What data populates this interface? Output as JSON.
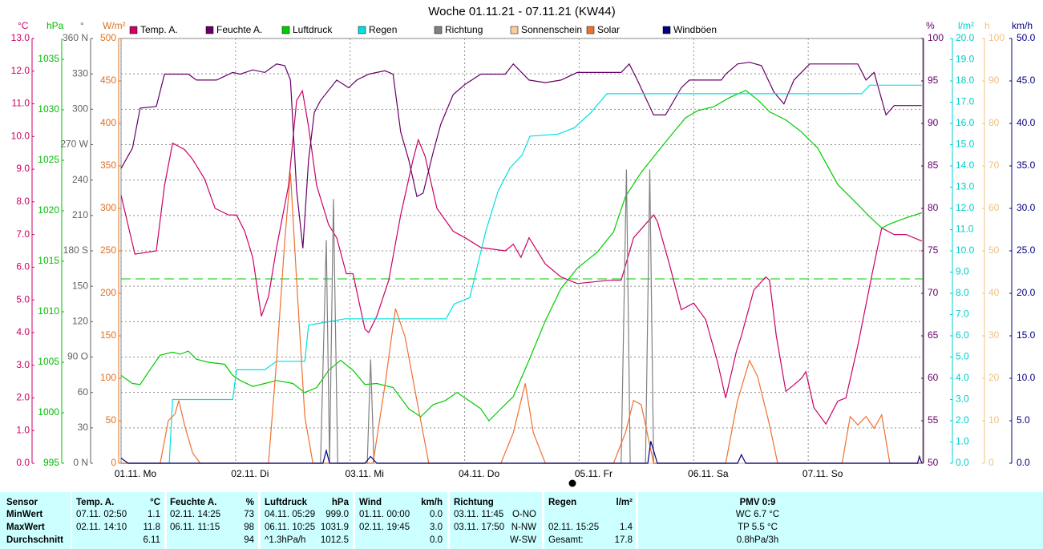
{
  "chart_data": {
    "type": "line",
    "title": "Woche 01.11.21 - 07.11.21 (KW44)",
    "xlim": [
      0,
      168
    ],
    "xticks": [
      {
        "value": 0,
        "label": "01.11. Mo"
      },
      {
        "value": 24,
        "label": "02.11. Di"
      },
      {
        "value": 48,
        "label": "03.11. Mi"
      },
      {
        "value": 72,
        "label": "04.11. Do"
      },
      {
        "value": 96,
        "label": "05.11. Fr"
      },
      {
        "value": 120,
        "label": "06.11. Sa"
      },
      {
        "value": 144,
        "label": "07.11. So"
      }
    ],
    "grid": true,
    "grid_axis": "dir",
    "reference_line": {
      "value": 1013.25,
      "axis": "hpa",
      "color": "#00cc00"
    },
    "axes": [
      {
        "id": "temp",
        "unit": "°C",
        "color": "#cc0066",
        "lim": [
          0,
          13
        ],
        "ticks": [
          {
            "value": 0,
            "label": "0.0"
          },
          {
            "value": 1,
            "label": "1.0"
          },
          {
            "value": 2,
            "label": "2.0"
          },
          {
            "value": 3,
            "label": "3.0"
          },
          {
            "value": 4,
            "label": "4.0"
          },
          {
            "value": 5,
            "label": "5.0"
          },
          {
            "value": 6,
            "label": "6.0"
          },
          {
            "value": 7,
            "label": "7.0"
          },
          {
            "value": 8,
            "label": "8.0"
          },
          {
            "value": 9,
            "label": "9.0"
          },
          {
            "value": 10,
            "label": "10.0"
          },
          {
            "value": 11,
            "label": "11.0"
          },
          {
            "value": 12,
            "label": "12.0"
          },
          {
            "value": 13,
            "label": "13.0"
          }
        ]
      },
      {
        "id": "hpa",
        "unit": "hPa",
        "color": "#00bb00",
        "lim": [
          995,
          1037.06
        ],
        "ticks": [
          995,
          1000,
          1005,
          1010,
          1015,
          1020,
          1025,
          1030,
          1035
        ]
      },
      {
        "id": "dir",
        "unit": "°",
        "color": "#606060",
        "lim": [
          0,
          360
        ],
        "ticks": [
          {
            "value": 0,
            "label": "0 N"
          },
          30,
          60,
          {
            "value": 90,
            "label": "90 O"
          },
          120,
          150,
          {
            "value": 180,
            "label": "180 S"
          },
          210,
          240,
          {
            "value": 270,
            "label": "270 W"
          },
          300,
          330,
          {
            "value": 360,
            "label": "360 N"
          }
        ]
      },
      {
        "id": "solar",
        "unit": "W/m²",
        "color": "#e07020",
        "lim": [
          0,
          500
        ],
        "ticks": [
          0,
          50,
          100,
          150,
          200,
          250,
          300,
          350,
          400,
          450,
          500
        ]
      },
      {
        "id": "hum",
        "unit": "%",
        "color": "#660066",
        "lim": [
          50,
          100
        ],
        "ticks": [
          50,
          55,
          60,
          65,
          70,
          75,
          80,
          85,
          90,
          95,
          100
        ]
      },
      {
        "id": "rain",
        "unit": "l/m²",
        "color": "#00cccc",
        "lim": [
          0,
          20
        ],
        "ticks": [
          {
            "value": 0,
            "label": "0.0"
          },
          {
            "value": 1,
            "label": "1.0"
          },
          {
            "value": 2,
            "label": "2.0"
          },
          {
            "value": 3,
            "label": "3.0"
          },
          {
            "value": 4,
            "label": "4.0"
          },
          {
            "value": 5,
            "label": "5.0"
          },
          {
            "value": 6,
            "label": "6.0"
          },
          {
            "value": 7,
            "label": "7.0"
          },
          {
            "value": 8,
            "label": "8.0"
          },
          {
            "value": 9,
            "label": "9.0"
          },
          {
            "value": 10,
            "label": "10.0"
          },
          {
            "value": 11,
            "label": "11.0"
          },
          {
            "value": 12,
            "label": "12.0"
          },
          {
            "value": 13,
            "label": "13.0"
          },
          {
            "value": 14,
            "label": "14.0"
          },
          {
            "value": 15,
            "label": "15.0"
          },
          {
            "value": 16,
            "label": "16.0"
          },
          {
            "value": 17,
            "label": "17.0"
          },
          {
            "value": 18,
            "label": "18.0"
          },
          {
            "value": 19,
            "label": "19.0"
          },
          {
            "value": 20,
            "label": "20.0"
          }
        ]
      },
      {
        "id": "sun",
        "unit": "h",
        "color": "#f0c080",
        "lim": [
          0,
          100
        ],
        "ticks": [
          0,
          10,
          20,
          30,
          40,
          50,
          60,
          70,
          80,
          90,
          100
        ]
      },
      {
        "id": "wind",
        "unit": "km/h",
        "color": "#000080",
        "lim": [
          0,
          50
        ],
        "ticks": [
          {
            "value": 0,
            "label": "0.0"
          },
          {
            "value": 5,
            "label": "5.0"
          },
          {
            "value": 10,
            "label": "10.0"
          },
          {
            "value": 15,
            "label": "15.0"
          },
          {
            "value": 20,
            "label": "20.0"
          },
          {
            "value": 25,
            "label": "25.0"
          },
          {
            "value": 30,
            "label": "30.0"
          },
          {
            "value": 35,
            "label": "35.0"
          },
          {
            "value": 40,
            "label": "40.0"
          },
          {
            "value": 45,
            "label": "45.0"
          },
          {
            "value": 50,
            "label": "50.0"
          }
        ]
      }
    ],
    "series": [
      {
        "name": "Temp. A.",
        "color": "#cc0066",
        "axis": "temp",
        "x": [
          0,
          2.9,
          7.4,
          9.1,
          10.8,
          13.3,
          15,
          17.5,
          19.7,
          22.5,
          24.2,
          25.9,
          27.6,
          29.4,
          30.9,
          32.6,
          35.1,
          36.8,
          38,
          39.3,
          41,
          43.5,
          45.2,
          47.2,
          48.6,
          51.1,
          51.9,
          53.6,
          56.1,
          58.6,
          61.2,
          62.3,
          63.7,
          66.2,
          69.6,
          72.1,
          75.4,
          80.5,
          82.2,
          83.8,
          85.5,
          88.9,
          92.2,
          95.6,
          102.3,
          104.8,
          107.4,
          111.6,
          112.4,
          114.9,
          117.4,
          120,
          122.5,
          125,
          126.7,
          128.9,
          130,
          132.6,
          135.1,
          135.9,
          137.3,
          139.3,
          141,
          142.6,
          143.5,
          145.2,
          147.7,
          150.2,
          151.9,
          154.4,
          157.4,
          159.4,
          162,
          164.5,
          167.8
        ],
        "values": [
          8.2,
          6.4,
          6.5,
          8.5,
          9.8,
          9.6,
          9.3,
          8.7,
          7.8,
          7.6,
          7.6,
          7.1,
          6.3,
          4.5,
          5.1,
          6.6,
          8.5,
          11.1,
          11.4,
          10.3,
          8.5,
          7.3,
          6.9,
          5.8,
          5.8,
          4.1,
          4.0,
          4.5,
          5.6,
          7.6,
          9.3,
          9.9,
          9.4,
          7.8,
          7.1,
          6.9,
          6.6,
          6.5,
          6.7,
          6.3,
          6.9,
          6.1,
          5.7,
          5.5,
          5.6,
          5.6,
          6.9,
          7.6,
          7.4,
          6.1,
          4.7,
          4.9,
          4.4,
          3.1,
          2.0,
          3.4,
          3.9,
          5.3,
          5.7,
          5.6,
          3.9,
          2.2,
          2.4,
          2.6,
          2.8,
          1.7,
          1.2,
          1.9,
          2.0,
          3.6,
          5.8,
          7.2,
          7.0,
          7.0,
          6.8
        ]
      },
      {
        "name": "Feuchte A.",
        "color": "#660066",
        "axis": "hum",
        "x": [
          0,
          2.4,
          4,
          7.4,
          9.1,
          14.1,
          15.8,
          20,
          23.4,
          25,
          27.6,
          30.1,
          32.6,
          34.3,
          35.5,
          36.8,
          38.1,
          39.3,
          40.5,
          41.8,
          45.2,
          47.7,
          49.4,
          51.9,
          55.3,
          57,
          58.6,
          60.3,
          62,
          63.3,
          65.4,
          67,
          69.6,
          72.1,
          75.4,
          80.5,
          82.2,
          85.5,
          88.9,
          92.2,
          95.6,
          104.8,
          106.5,
          108.2,
          111.6,
          114.1,
          117.4,
          119.1,
          125.8,
          126.7,
          129.2,
          131.7,
          134.2,
          136.8,
          138.9,
          141,
          144.3,
          154.4,
          156.1,
          157.8,
          160.3,
          162,
          167.8
        ],
        "values": [
          84.7,
          87.1,
          91.8,
          92.0,
          95.8,
          95.8,
          95.1,
          95.1,
          96.0,
          95.8,
          96.3,
          96.0,
          97.0,
          96.8,
          95.1,
          82.1,
          75.3,
          85.7,
          91.3,
          92.7,
          95.1,
          94.2,
          95.1,
          95.8,
          96.2,
          95.8,
          89.0,
          85.7,
          81.4,
          81.8,
          86.6,
          89.9,
          93.4,
          94.6,
          95.8,
          95.8,
          97.0,
          95.1,
          94.8,
          95.1,
          96.0,
          96.0,
          97.0,
          95.1,
          91.0,
          91.0,
          94.2,
          95.1,
          95.1,
          95.8,
          97.0,
          97.2,
          96.8,
          93.7,
          92.3,
          95.1,
          97.0,
          97.0,
          95.1,
          96.0,
          91.0,
          92.1,
          92.1
        ]
      },
      {
        "name": "Luftdruck",
        "color": "#00cc00",
        "axis": "hpa",
        "x": [
          0,
          2.4,
          4,
          5.7,
          8.2,
          10.8,
          12.4,
          14.1,
          15.8,
          18.3,
          21.7,
          23.4,
          25,
          27.6,
          30.1,
          32.6,
          36,
          38.5,
          41,
          43.5,
          46,
          48.6,
          51.1,
          53.6,
          57,
          60.3,
          62.8,
          65.4,
          67.9,
          70.4,
          72.9,
          75.4,
          77.1,
          79.6,
          82.2,
          85.5,
          88.9,
          92.2,
          95.6,
          99.8,
          103.2,
          105.7,
          109,
          112.4,
          115.8,
          118.3,
          120.8,
          124.2,
          127.5,
          130.9,
          133.4,
          135.9,
          139.3,
          142.6,
          146,
          150.2,
          153.6,
          156.9,
          159.4,
          161.1,
          164.5,
          167.8
        ],
        "values": [
          1003.7,
          1002.9,
          1002.8,
          1004.0,
          1005.7,
          1006.0,
          1005.8,
          1006.1,
          1005.3,
          1005.0,
          1004.8,
          1003.7,
          1003.2,
          1002.6,
          1002.9,
          1003.2,
          1002.9,
          1002.0,
          1002.5,
          1004.2,
          1005.2,
          1004.2,
          1002.8,
          1002.9,
          1002.5,
          1000.4,
          999.6,
          1000.8,
          1001.2,
          1002.0,
          1001.2,
          1000.4,
          999.2,
          1000.4,
          1001.6,
          1005.2,
          1009.1,
          1012.3,
          1014.3,
          1015.9,
          1017.9,
          1021.4,
          1023.8,
          1025.8,
          1027.8,
          1029.2,
          1029.9,
          1030.3,
          1031.2,
          1031.9,
          1031.0,
          1029.8,
          1029.0,
          1027.8,
          1026.2,
          1022.6,
          1021.0,
          1019.4,
          1018.3,
          1018.7,
          1019.3,
          1019.8
        ]
      },
      {
        "name": "Regen",
        "color": "#00e0e0",
        "axis": "rain",
        "x": [
          0,
          10.1,
          10.8,
          23.4,
          24.2,
          30.1,
          32.6,
          38.5,
          39.3,
          41.8,
          46.9,
          68.1,
          69.8,
          73.1,
          74.8,
          76.4,
          79,
          81.5,
          84,
          85.7,
          91.6,
          95,
          98.4,
          101.8,
          155.2,
          156.9,
          167.8
        ],
        "values": [
          0,
          0,
          3.0,
          3.0,
          4.4,
          4.4,
          4.8,
          4.8,
          6.5,
          6.6,
          6.8,
          6.8,
          7.5,
          7.8,
          9.4,
          10.9,
          12.8,
          13.9,
          14.5,
          15.4,
          15.5,
          15.8,
          16.5,
          17.4,
          17.4,
          17.8,
          17.8
        ]
      },
      {
        "name": "Richtung",
        "color": "#808080",
        "axis": "dir",
        "x": [
          0,
          41.8,
          43,
          43.7,
          44.5,
          45.4,
          51.6,
          52.3,
          53,
          104.8,
          105.9,
          106.7,
          109.9,
          110.8,
          111.6,
          167.8
        ],
        "values": [
          0,
          0,
          189,
          0,
          224,
          0,
          0,
          88,
          0,
          0,
          249,
          0,
          0,
          249,
          0,
          0
        ]
      },
      {
        "name": "Sonnenschein",
        "color": "#ffcc99",
        "axis": "sun",
        "x": [
          0,
          167.8
        ],
        "values": [
          0,
          0
        ]
      },
      {
        "name": "Solar",
        "color": "#f07030",
        "axis": "solar",
        "x": [
          0,
          8.2,
          9.9,
          11.3,
          12.1,
          13.3,
          15,
          16.6,
          30.9,
          32.6,
          34.3,
          35.5,
          36.8,
          38.5,
          40.2,
          52.8,
          55.3,
          57.5,
          59.5,
          62,
          64.5,
          79.6,
          82.2,
          84.7,
          86.4,
          88.9,
          103.2,
          105.7,
          107.4,
          109,
          111.6,
          126.7,
          129.2,
          131.7,
          133.4,
          135.9,
          137.6,
          151.1,
          152.8,
          154.4,
          156.1,
          157.8,
          159.4,
          161.1,
          167.8
        ],
        "values": [
          0,
          0,
          50,
          58,
          74,
          45,
          12,
          0,
          0,
          121,
          262,
          342,
          215,
          55,
          0,
          0,
          92,
          182,
          149,
          74,
          0,
          0,
          36,
          94,
          36,
          0,
          0,
          36,
          74,
          69,
          0,
          0,
          74,
          121,
          102,
          45,
          0,
          0,
          55,
          45,
          55,
          41,
          57,
          0,
          0
        ]
      },
      {
        "name": "Windböen",
        "color": "#000080",
        "axis": "wind",
        "x": [
          0,
          1.5,
          42.3,
          43,
          43.7,
          51.1,
          52.3,
          53.6,
          110.4,
          111,
          112.4,
          129.2,
          130,
          130.9,
          166.9,
          167.3,
          167.8
        ],
        "values": [
          0.6,
          0,
          0,
          1.5,
          0,
          0,
          0.8,
          0,
          0,
          2.6,
          0,
          0,
          1.0,
          0,
          0,
          0.8,
          0
        ]
      }
    ]
  },
  "table": {
    "rows": [
      [
        "Sensor",
        "Temp. A.",
        "°C",
        "Feuchte A.",
        "%",
        "Luftdruck",
        "hPa",
        "Wind",
        "km/h",
        "Richtung",
        null,
        "Regen",
        "l/m²",
        "PMV 0:9"
      ],
      [
        "MinWert",
        "07.11. 02:50",
        "1.1",
        "02.11. 14:25",
        "73",
        "04.11. 05:29",
        "999.0",
        "01.11. 00:00",
        "0.0",
        "03.11. 11:45",
        "O-NO",
        null,
        null,
        "WC 6.7 °C"
      ],
      [
        "MaxWert",
        "02.11. 14:10",
        "11.8",
        "06.11. 11:15",
        "98",
        "06.11. 10:25",
        "1031.9",
        "02.11. 19:45",
        "3.0",
        "03.11. 17:50",
        "N-NW",
        "02.11. 15:25",
        "1.4",
        "TP 5.5 °C"
      ],
      [
        "Durchschnitt",
        null,
        "6.11",
        null,
        "94",
        "^1.3hPa/h",
        "1012.5",
        null,
        "0.0",
        null,
        "W-SW",
        "Gesamt:",
        "17.8",
        "0.8hPa/3h"
      ]
    ]
  }
}
